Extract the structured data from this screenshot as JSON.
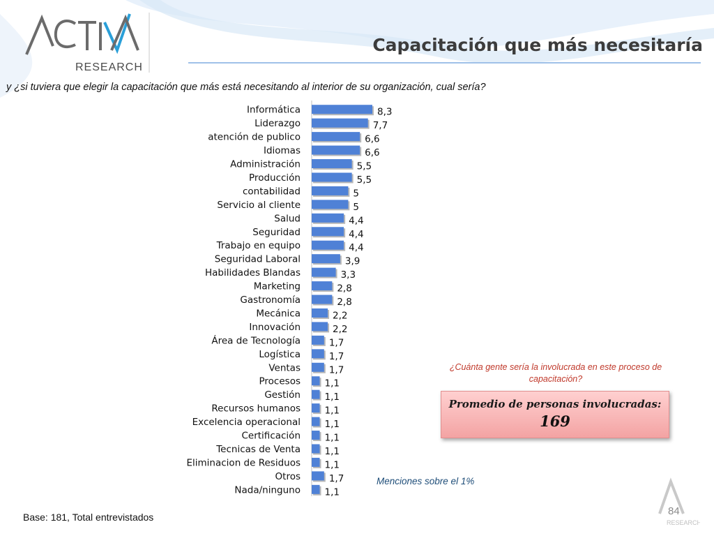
{
  "header": {
    "logo_text": "RESEARCH",
    "title": "Capacitación que más necesitaría"
  },
  "question": "y ¿si tuviera que elegir la capacitación que más está necesitando al interior de su organización, cual sería?",
  "chart_data": {
    "type": "bar",
    "orientation": "horizontal",
    "categories": [
      "Informática",
      "Liderazgo",
      "atención de publico",
      "Idiomas",
      "Administración",
      "Producción",
      "contabilidad",
      "Servicio al cliente",
      "Salud",
      "Seguridad",
      "Trabajo en equipo",
      "Seguridad Laboral",
      "Habilidades Blandas",
      "Marketing",
      "Gastronomía",
      "Mecánica",
      "Innovación",
      "Área de Tecnología",
      "Logística",
      "Ventas",
      "Procesos",
      "Gestión",
      "Recursos humanos",
      "Excelencia operacional",
      "Certificación",
      "Tecnicas de Venta",
      "Eliminacion de Residuos",
      "Otros",
      "Nada/ninguno"
    ],
    "values": [
      8.3,
      7.7,
      6.6,
      6.6,
      5.5,
      5.5,
      5,
      5,
      4.4,
      4.4,
      4.4,
      3.9,
      3.3,
      2.8,
      2.8,
      2.2,
      2.2,
      1.7,
      1.7,
      1.7,
      1.1,
      1.1,
      1.1,
      1.1,
      1.1,
      1.1,
      1.1,
      1.7,
      1.1
    ],
    "value_labels": [
      "8,3",
      "7,7",
      "6,6",
      "6,6",
      "5,5",
      "5,5",
      "5",
      "5",
      "4,4",
      "4,4",
      "4,4",
      "3,9",
      "3,3",
      "2,8",
      "2,8",
      "2,2",
      "2,2",
      "1,7",
      "1,7",
      "1,7",
      "1,1",
      "1,1",
      "1,1",
      "1,1",
      "1,1",
      "1,1",
      "1,1",
      "1,7",
      "1,1"
    ],
    "title": "",
    "xlabel": "",
    "ylabel": "",
    "xlim": [
      0,
      8.3
    ],
    "grid": false,
    "legend": "none",
    "bar_color": "#4f81d6"
  },
  "sub_question": "¿Cuánta gente sería la involucrada en este proceso de capacitación?",
  "average": {
    "label": "Promedio de personas involucradas:",
    "value": "169"
  },
  "note": "Menciones sobre el 1%",
  "footer": {
    "base": "Base: 181, Total entrevistados",
    "page_number": "84"
  },
  "colors": {
    "accent": "#9fc1e8",
    "bar": "#4f81d6",
    "highlight": "#c0392b"
  }
}
